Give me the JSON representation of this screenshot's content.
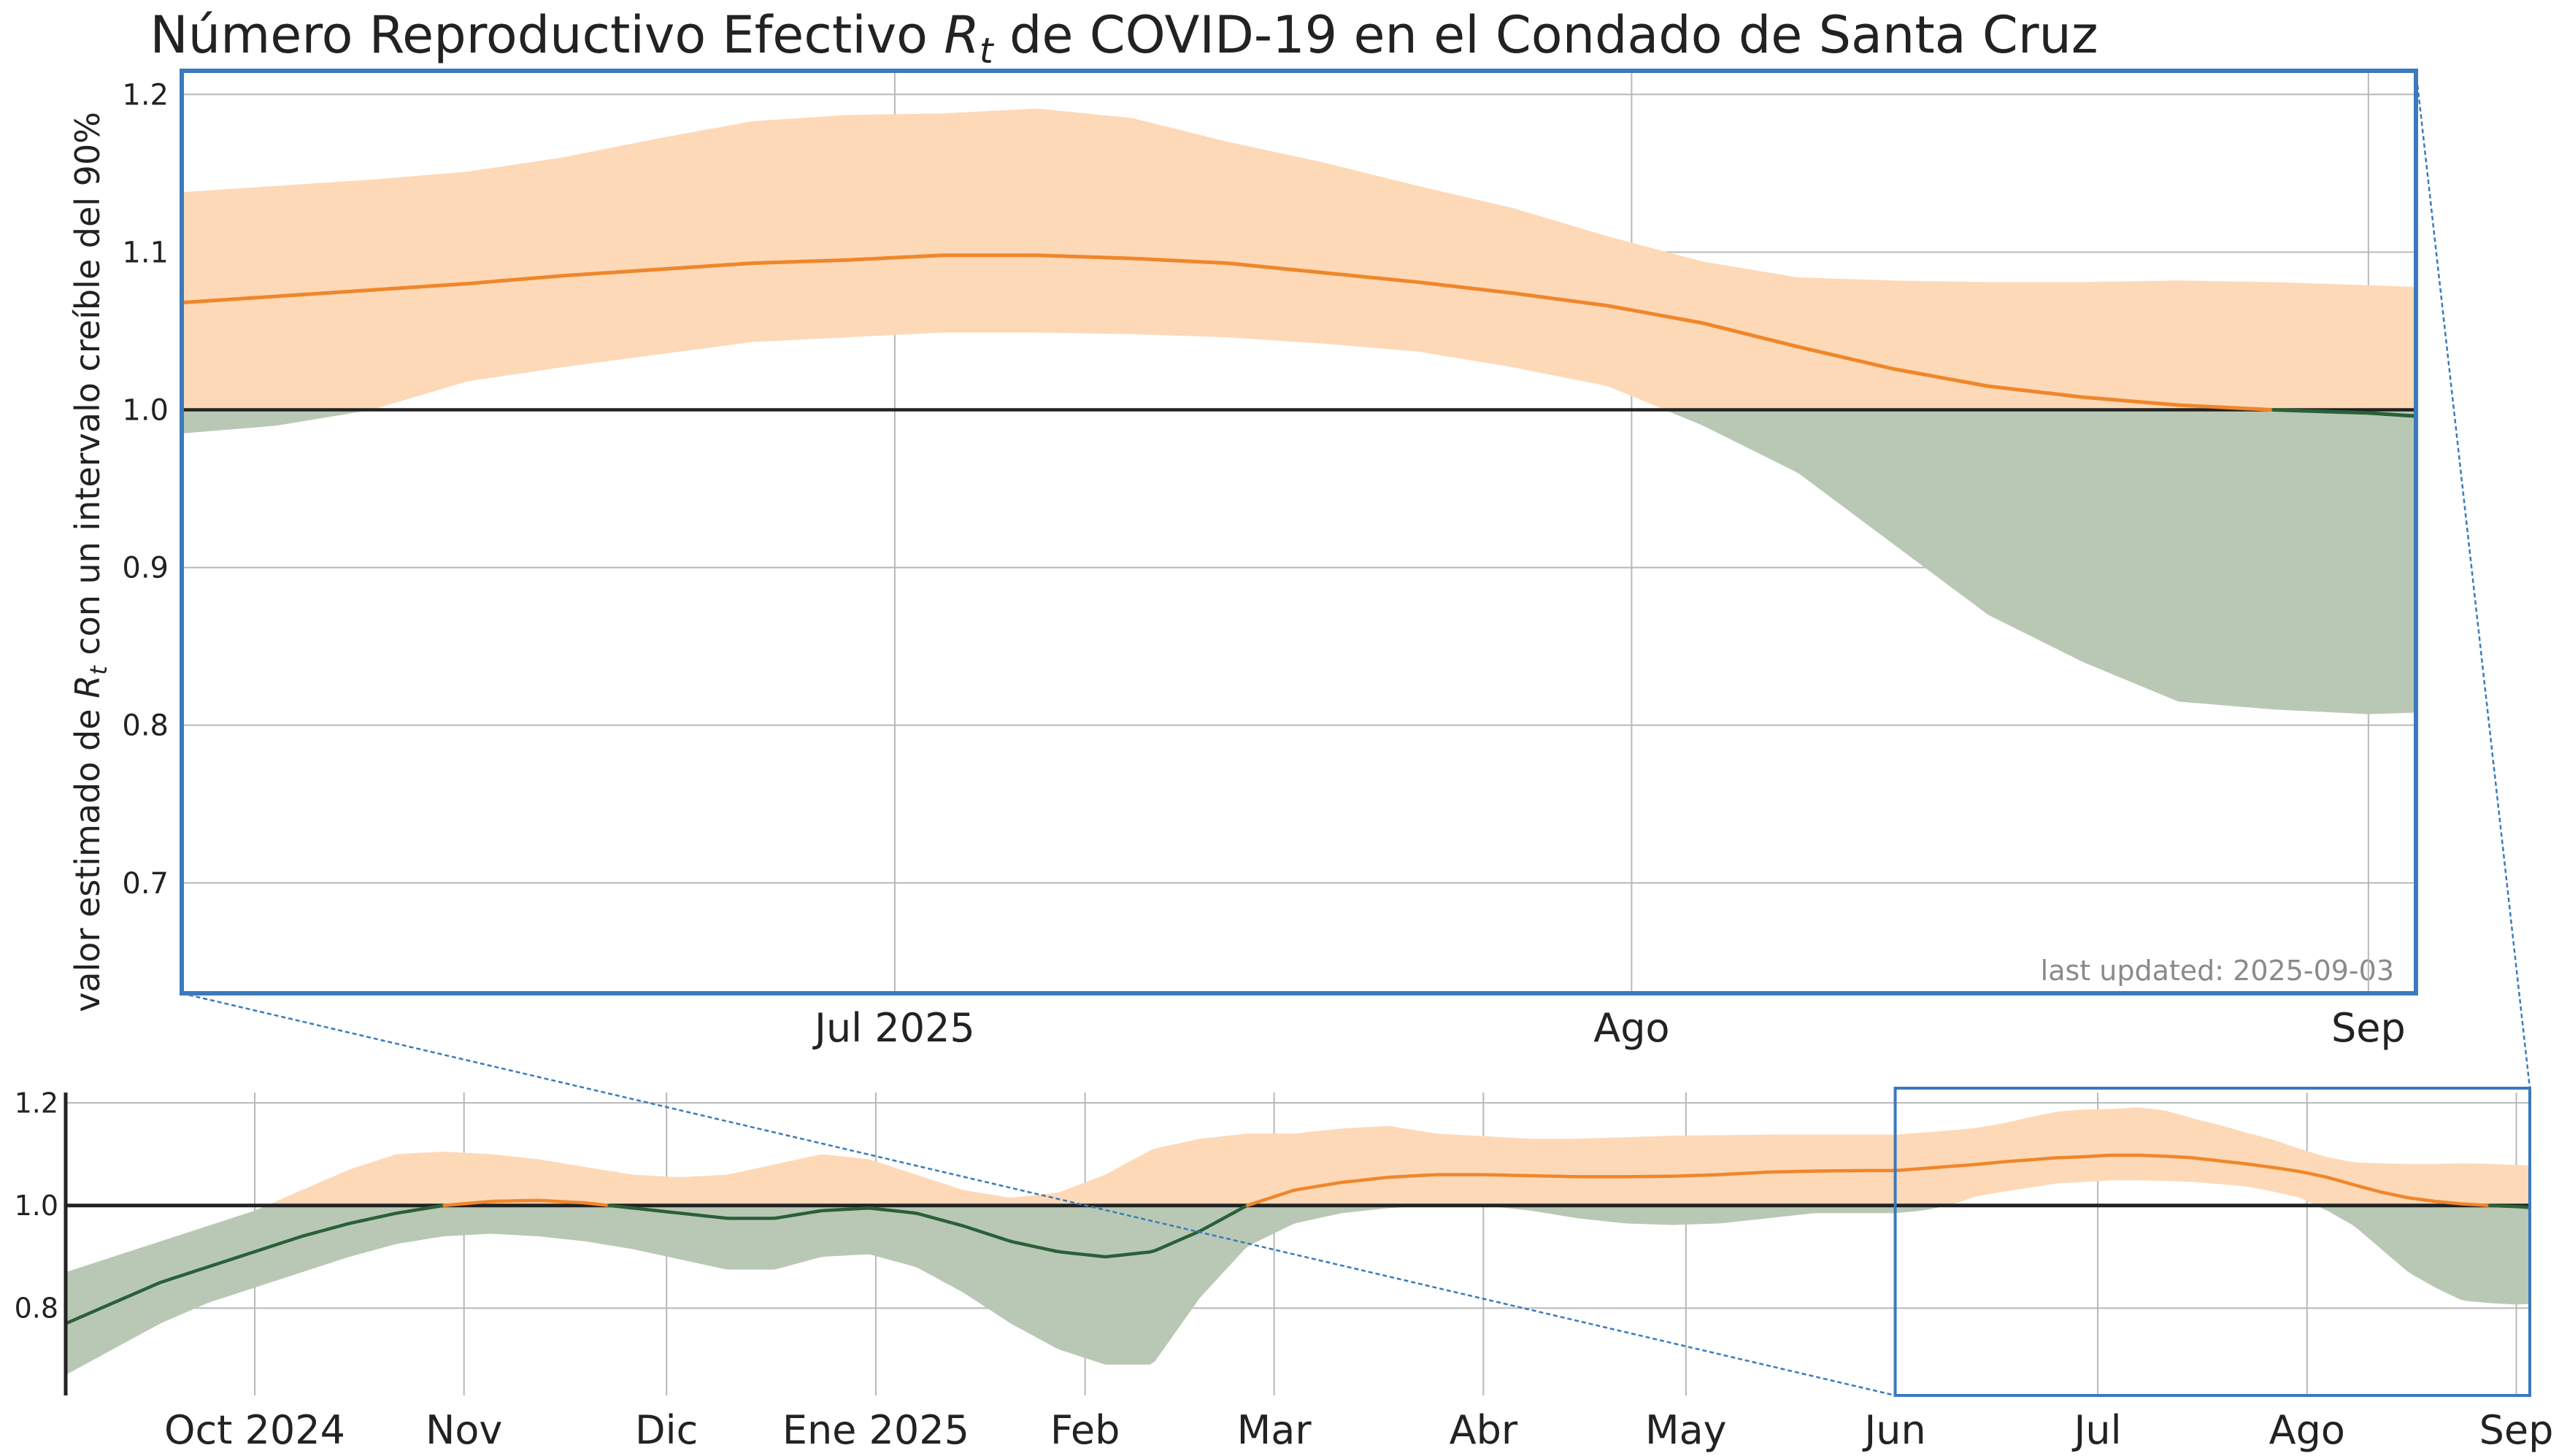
{
  "chart_data": [
    {
      "type": "area",
      "panel": "main",
      "title": "Número Reproductivo Efectivo R_t de COVID-19 en el Condado de Santa Cruz",
      "title_main": "Número Reproductivo Efectivo ",
      "title_symbol": "R",
      "title_subscript": "t",
      "title_rest": " de COVID-19 en el Condado de Santa Cruz",
      "ylabel_start": "valor estimado de ",
      "ylabel_symbol": "R",
      "ylabel_subscript": "t",
      "ylabel_end": " con un intervalo creíble del 90%",
      "annotation": "last updated: 2025-09-03",
      "xlim": [
        "2025-06-01",
        "2025-09-03"
      ],
      "ylim": [
        0.63,
        1.215
      ],
      "yticks": [
        0.7,
        0.8,
        0.9,
        1.0,
        1.1,
        1.2
      ],
      "ytick_labels": [
        "0.7",
        "0.8",
        "0.9",
        "1.0",
        "1.1",
        "1.2"
      ],
      "xticks": [
        "2025-07-01",
        "2025-08-01",
        "2025-09-01"
      ],
      "xtick_labels": [
        "Jul 2025",
        "Ago",
        "Sep"
      ],
      "grid": true,
      "reference_line": 1.0,
      "colors": {
        "rt_line": "#f0862a",
        "band_above": "#fdd9b8",
        "band_below": "#b9c8b4",
        "line_below": "#2a6039",
        "reference_line": "#222222",
        "frame": "#3a7abd",
        "grid": "#b8b8b8",
        "annotation": "#8a8a8a"
      }
    },
    {
      "type": "area",
      "panel": "overview",
      "xlim": [
        "2024-09-03",
        "2025-09-03"
      ],
      "ylim": [
        0.63,
        1.22
      ],
      "yticks": [
        0.8,
        1.0,
        1.2
      ],
      "ytick_labels": [
        "0.8",
        "1.0",
        "1.2"
      ],
      "xticks": [
        "2024-10-01",
        "2024-11-01",
        "2024-12-01",
        "2025-01-01",
        "2025-02-01",
        "2025-03-01",
        "2025-04-01",
        "2025-05-01",
        "2025-06-01",
        "2025-07-01",
        "2025-08-01",
        "2025-09-01"
      ],
      "xtick_labels": [
        "Oct 2024",
        "Nov",
        "Dic",
        "Ene 2025",
        "Feb",
        "Mar",
        "Abr",
        "May",
        "Jun",
        "Jul",
        "Ago",
        "Sep"
      ],
      "grid": true,
      "reference_line": 1.0,
      "zoom_window": [
        "2025-06-01",
        "2025-09-03"
      ]
    }
  ],
  "series": {
    "dates": [
      "2024-09-03",
      "2024-09-10",
      "2024-09-17",
      "2024-09-24",
      "2024-10-01",
      "2024-10-08",
      "2024-10-15",
      "2024-10-22",
      "2024-10-29",
      "2024-11-05",
      "2024-11-12",
      "2024-11-19",
      "2024-11-26",
      "2024-12-03",
      "2024-12-10",
      "2024-12-17",
      "2024-12-24",
      "2024-12-31",
      "2025-01-07",
      "2025-01-14",
      "2025-01-21",
      "2025-01-28",
      "2025-02-04",
      "2025-02-11",
      "2025-02-18",
      "2025-02-25",
      "2025-03-04",
      "2025-03-11",
      "2025-03-18",
      "2025-03-25",
      "2025-04-01",
      "2025-04-08",
      "2025-04-15",
      "2025-04-22",
      "2025-04-29",
      "2025-05-06",
      "2025-05-13",
      "2025-05-20",
      "2025-05-27",
      "2025-06-01",
      "2025-06-05",
      "2025-06-09",
      "2025-06-13",
      "2025-06-17",
      "2025-06-21",
      "2025-06-25",
      "2025-06-29",
      "2025-07-03",
      "2025-07-07",
      "2025-07-11",
      "2025-07-15",
      "2025-07-19",
      "2025-07-23",
      "2025-07-27",
      "2025-07-31",
      "2025-08-04",
      "2025-08-08",
      "2025-08-12",
      "2025-08-16",
      "2025-08-20",
      "2025-08-24",
      "2025-08-28",
      "2025-09-01",
      "2025-09-03"
    ],
    "median": [
      0.77,
      0.81,
      0.85,
      0.88,
      0.91,
      0.94,
      0.965,
      0.985,
      1.0,
      1.008,
      1.01,
      1.005,
      0.995,
      0.985,
      0.975,
      0.975,
      0.99,
      0.995,
      0.985,
      0.96,
      0.93,
      0.91,
      0.9,
      0.91,
      0.95,
      1.0,
      1.03,
      1.045,
      1.055,
      1.06,
      1.06,
      1.058,
      1.056,
      1.056,
      1.057,
      1.06,
      1.065,
      1.067,
      1.068,
      1.068,
      1.072,
      1.076,
      1.08,
      1.085,
      1.089,
      1.093,
      1.095,
      1.098,
      1.098,
      1.096,
      1.093,
      1.087,
      1.081,
      1.074,
      1.066,
      1.055,
      1.04,
      1.026,
      1.015,
      1.008,
      1.003,
      1.0,
      0.998,
      0.996
    ],
    "lower": [
      0.67,
      0.72,
      0.77,
      0.81,
      0.84,
      0.87,
      0.9,
      0.925,
      0.94,
      0.945,
      0.94,
      0.93,
      0.915,
      0.895,
      0.875,
      0.875,
      0.9,
      0.905,
      0.88,
      0.83,
      0.77,
      0.72,
      0.69,
      0.69,
      0.82,
      0.92,
      0.965,
      0.985,
      0.995,
      1.0,
      1.0,
      0.99,
      0.975,
      0.965,
      0.962,
      0.965,
      0.975,
      0.985,
      0.985,
      0.985,
      0.99,
      1.0,
      1.018,
      1.027,
      1.035,
      1.043,
      1.046,
      1.049,
      1.049,
      1.048,
      1.046,
      1.042,
      1.037,
      1.027,
      1.015,
      0.99,
      0.96,
      0.915,
      0.87,
      0.84,
      0.815,
      0.81,
      0.807,
      0.808
    ],
    "upper": [
      0.87,
      0.9,
      0.93,
      0.96,
      0.99,
      1.03,
      1.07,
      1.1,
      1.105,
      1.1,
      1.09,
      1.075,
      1.06,
      1.055,
      1.06,
      1.08,
      1.1,
      1.09,
      1.06,
      1.03,
      1.015,
      1.025,
      1.06,
      1.11,
      1.13,
      1.14,
      1.14,
      1.15,
      1.155,
      1.14,
      1.135,
      1.13,
      1.13,
      1.133,
      1.136,
      1.137,
      1.138,
      1.138,
      1.138,
      1.138,
      1.142,
      1.146,
      1.151,
      1.16,
      1.172,
      1.183,
      1.187,
      1.188,
      1.191,
      1.185,
      1.17,
      1.157,
      1.142,
      1.128,
      1.11,
      1.094,
      1.084,
      1.082,
      1.081,
      1.081,
      1.082,
      1.081,
      1.079,
      1.078
    ]
  }
}
